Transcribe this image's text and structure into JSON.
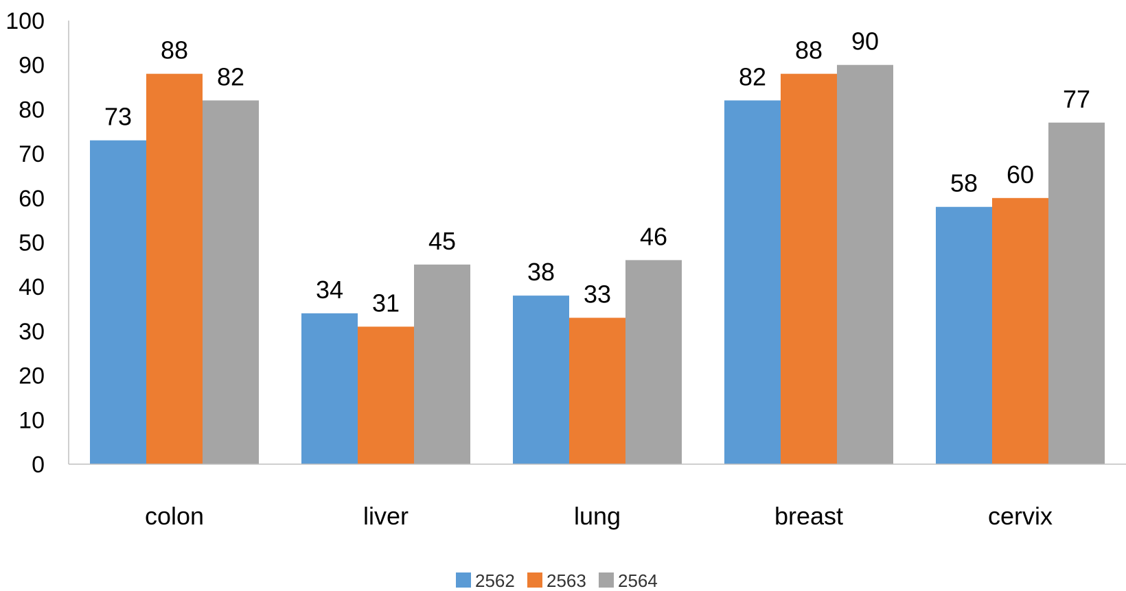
{
  "chart_data": {
    "type": "bar",
    "categories": [
      "colon",
      "liver",
      "lung",
      "breast",
      "cervix"
    ],
    "series": [
      {
        "name": "2562",
        "color": "#5b9bd5",
        "values": [
          73,
          34,
          38,
          82,
          58
        ]
      },
      {
        "name": "2563",
        "color": "#ed7d31",
        "values": [
          88,
          31,
          33,
          88,
          60
        ]
      },
      {
        "name": "2564",
        "color": "#a5a5a5",
        "values": [
          82,
          45,
          46,
          90,
          77
        ]
      }
    ],
    "ylim": [
      0,
      100
    ],
    "yticks": [
      0,
      10,
      20,
      30,
      40,
      50,
      60,
      70,
      80,
      90,
      100
    ],
    "grid": false,
    "legend_position": "bottom",
    "data_labels": true
  }
}
